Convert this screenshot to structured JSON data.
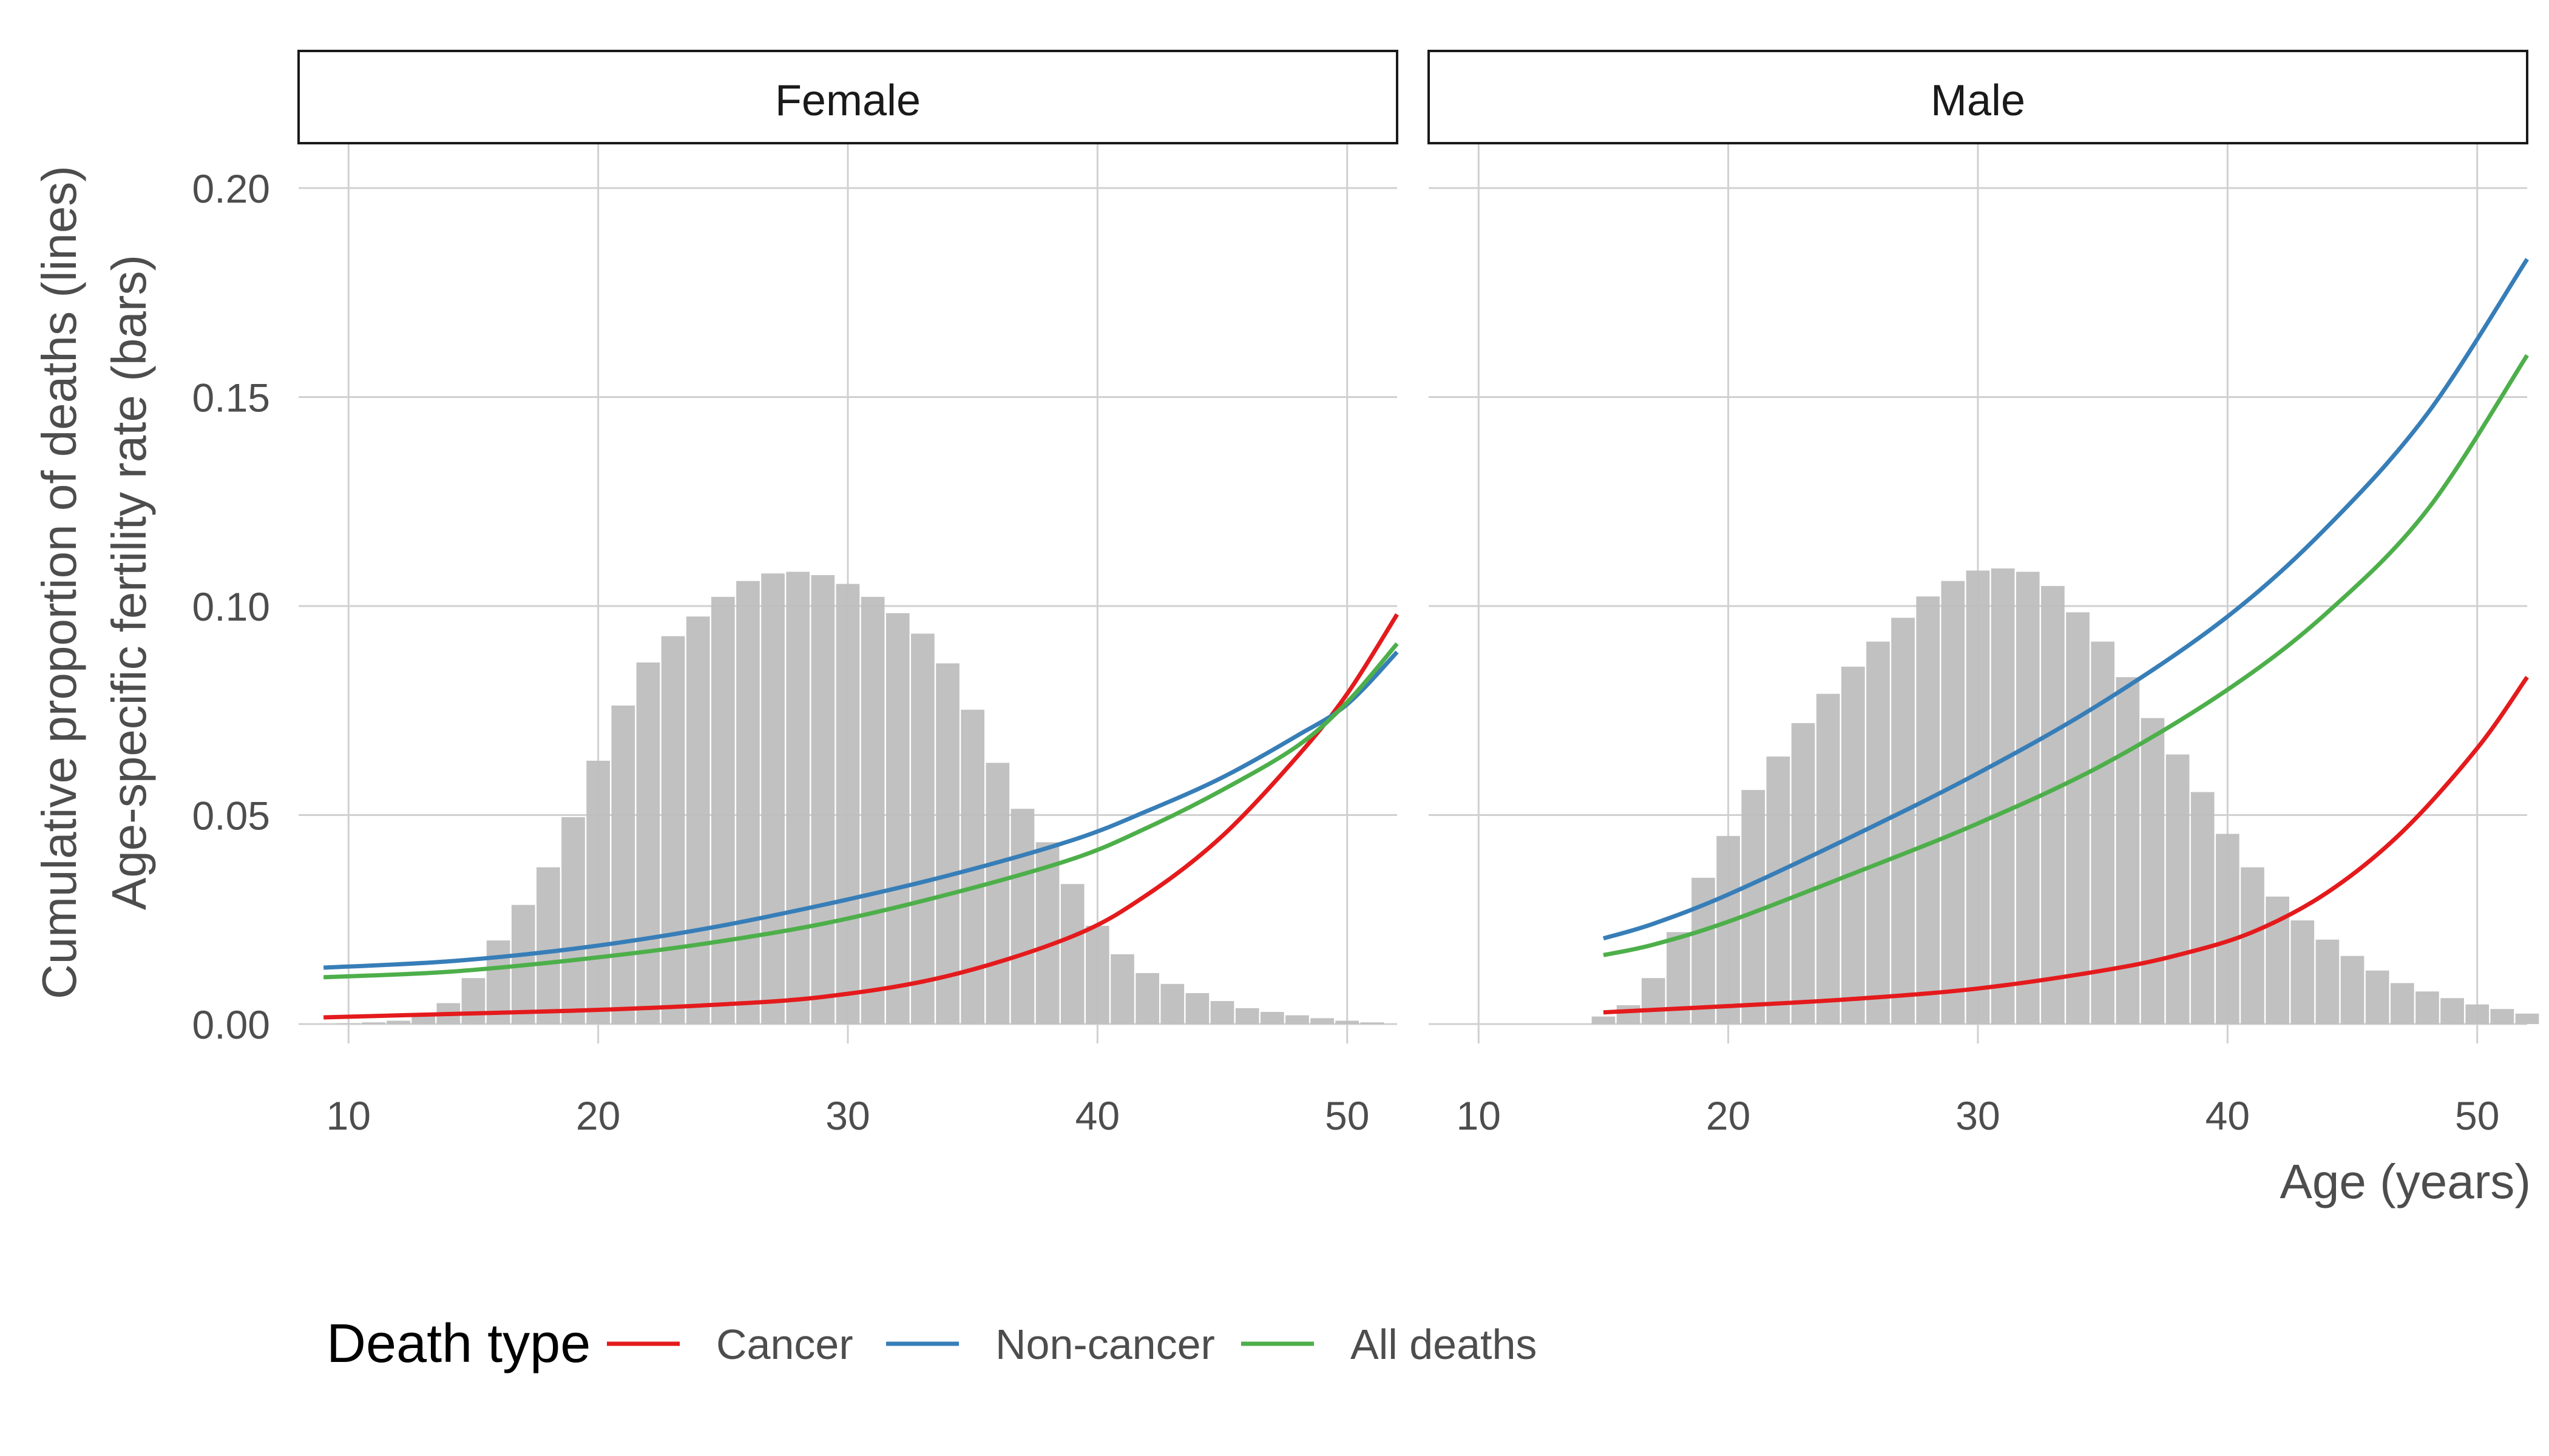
{
  "chart_data": {
    "type": "bar+line",
    "ylabel_lines": [
      "Cumulative proportion of deaths (lines)",
      "Age-specific fertility rate (bars)"
    ],
    "xlabel": "Age (years)",
    "xlim": [
      8,
      52
    ],
    "ylim": [
      0,
      0.2
    ],
    "x_ticks": [
      10,
      20,
      30,
      40,
      50
    ],
    "x_tick_labels": [
      "10",
      "20",
      "30",
      "40",
      "50"
    ],
    "y_ticks": [
      0,
      0.05,
      0.1,
      0.15,
      0.2
    ],
    "y_tick_labels": [
      "0.00",
      "0.05",
      "0.10",
      "0.15",
      "0.20"
    ],
    "grid": true,
    "legend": {
      "title": "Death type",
      "position": "bottom-left",
      "entries": [
        {
          "label": "Cancer",
          "color": "#e41a1c"
        },
        {
          "label": "Non-cancer",
          "color": "#377eb8"
        },
        {
          "label": "All deaths",
          "color": "#4daf4a"
        }
      ]
    },
    "bar_color": "#bebebe",
    "panels": [
      {
        "label": "Female",
        "bars": {
          "x": [
            10,
            11,
            12,
            13,
            14,
            15,
            16,
            17,
            18,
            19,
            20,
            21,
            22,
            23,
            24,
            25,
            26,
            27,
            28,
            29,
            30,
            31,
            32,
            33,
            34,
            35,
            36,
            37,
            38,
            39,
            40,
            41,
            42,
            43,
            44,
            45,
            46,
            47,
            48,
            49,
            50,
            51
          ],
          "values": [
            0.0002,
            0.0004,
            0.0008,
            0.002,
            0.005,
            0.011,
            0.02,
            0.0285,
            0.0375,
            0.0495,
            0.063,
            0.0762,
            0.0865,
            0.0928,
            0.0975,
            0.1022,
            0.106,
            0.1078,
            0.1082,
            0.1074,
            0.1053,
            0.1022,
            0.0983,
            0.0934,
            0.0863,
            0.0752,
            0.0625,
            0.0515,
            0.0435,
            0.0335,
            0.0235,
            0.0167,
            0.0122,
            0.0096,
            0.0074,
            0.0055,
            0.0038,
            0.0029,
            0.0021,
            0.0014,
            0.0008,
            0.0004
          ]
        },
        "series": [
          {
            "name": "Cancer",
            "color": "#e41a1c",
            "x": [
              9,
              14,
              19,
              24,
              29,
              34,
              39,
              42,
              45,
              48,
              50,
              52
            ],
            "values": [
              0.0016,
              0.0024,
              0.0032,
              0.0044,
              0.0065,
              0.0115,
              0.021,
              0.031,
              0.045,
              0.064,
              0.079,
              0.098
            ]
          },
          {
            "name": "Non-cancer",
            "color": "#377eb8",
            "x": [
              9,
              14,
              19,
              24,
              29,
              34,
              39,
              42,
              45,
              48,
              50,
              52
            ],
            "values": [
              0.0135,
              0.015,
              0.018,
              0.0225,
              0.0285,
              0.0355,
              0.044,
              0.051,
              0.059,
              0.069,
              0.0765,
              0.089
            ]
          },
          {
            "name": "All deaths",
            "color": "#4daf4a",
            "x": [
              9,
              14,
              19,
              24,
              29,
              34,
              39,
              42,
              45,
              48,
              50,
              52
            ],
            "values": [
              0.0112,
              0.0125,
              0.0153,
              0.019,
              0.024,
              0.031,
              0.0395,
              0.047,
              0.056,
              0.0665,
              0.077,
              0.091
            ]
          }
        ]
      },
      {
        "label": "Male",
        "bars": {
          "x": [
            15,
            16,
            17,
            18,
            19,
            20,
            21,
            22,
            23,
            24,
            25,
            26,
            27,
            28,
            29,
            30,
            31,
            32,
            33,
            34,
            35,
            36,
            37,
            38,
            39,
            40,
            41,
            42,
            43,
            44,
            45,
            46,
            47,
            48,
            49,
            50,
            51,
            52
          ],
          "values": [
            0.0018,
            0.0045,
            0.011,
            0.022,
            0.035,
            0.045,
            0.056,
            0.064,
            0.072,
            0.079,
            0.0855,
            0.0915,
            0.0972,
            0.1023,
            0.106,
            0.1085,
            0.109,
            0.1082,
            0.1048,
            0.0985,
            0.0915,
            0.083,
            0.0732,
            0.0645,
            0.0555,
            0.0455,
            0.0375,
            0.0305,
            0.0248,
            0.0202,
            0.0163,
            0.0128,
            0.0098,
            0.0078,
            0.0062,
            0.0047,
            0.0036,
            0.0025
          ]
        },
        "series": [
          {
            "name": "Cancer",
            "color": "#e41a1c",
            "x": [
              15,
              20,
              25,
              30,
              35,
              38,
              41,
              44,
              47,
              50,
              52
            ],
            "values": [
              0.0028,
              0.0043,
              0.006,
              0.0085,
              0.0128,
              0.0165,
              0.022,
              0.0315,
              0.046,
              0.066,
              0.083
            ]
          },
          {
            "name": "Non-cancer",
            "color": "#377eb8",
            "x": [
              15,
              17,
              20,
              25,
              30,
              35,
              40,
              44,
              48,
              52
            ],
            "values": [
              0.0205,
              0.024,
              0.031,
              0.045,
              0.06,
              0.077,
              0.0975,
              0.119,
              0.146,
              0.183
            ]
          },
          {
            "name": "All deaths",
            "color": "#4daf4a",
            "x": [
              15,
              17,
              20,
              25,
              30,
              35,
              40,
              44,
              48,
              52
            ],
            "values": [
              0.0165,
              0.019,
              0.0245,
              0.036,
              0.048,
              0.062,
              0.08,
              0.0985,
              0.123,
              0.16
            ]
          }
        ]
      }
    ]
  }
}
